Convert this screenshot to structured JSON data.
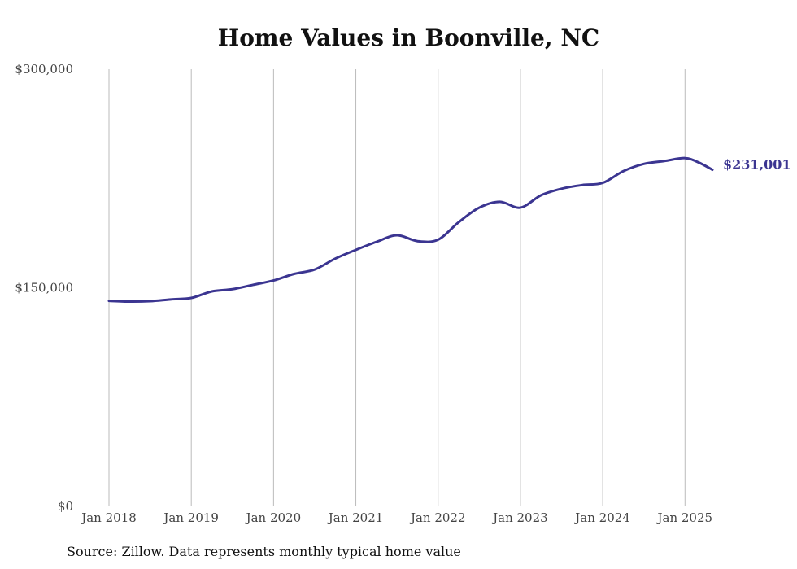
{
  "chart_data": {
    "type": "line",
    "title": "Home Values in Boonville, NC",
    "xlabel": "",
    "ylabel": "",
    "ylim": [
      0,
      300000
    ],
    "xlim": [
      "2018-01",
      "2025-05"
    ],
    "grid": {
      "vertical": true,
      "horizontal": false
    },
    "x_tick_labels": [
      "Jan 2018",
      "Jan 2019",
      "Jan 2020",
      "Jan 2021",
      "Jan 2022",
      "Jan 2023",
      "Jan 2024",
      "Jan 2025"
    ],
    "y_tick_labels": [
      "$0",
      "$150,000",
      "$300,000"
    ],
    "end_label": "$231,001",
    "colors": {
      "line": "#3b3591",
      "grid": "#bbbbbb",
      "axis_text": "#444444"
    },
    "series": [
      {
        "values": [
          {
            "x": "2018-01",
            "y": 141000
          },
          {
            "x": "2018-04",
            "y": 140500
          },
          {
            "x": "2018-07",
            "y": 140800
          },
          {
            "x": "2018-10",
            "y": 142000
          },
          {
            "x": "2019-01",
            "y": 143000
          },
          {
            "x": "2019-04",
            "y": 147500
          },
          {
            "x": "2019-07",
            "y": 149000
          },
          {
            "x": "2019-10",
            "y": 152000
          },
          {
            "x": "2020-01",
            "y": 155000
          },
          {
            "x": "2020-04",
            "y": 159500
          },
          {
            "x": "2020-07",
            "y": 162500
          },
          {
            "x": "2020-10",
            "y": 170000
          },
          {
            "x": "2021-01",
            "y": 176000
          },
          {
            "x": "2021-04",
            "y": 181500
          },
          {
            "x": "2021-07",
            "y": 186000
          },
          {
            "x": "2021-10",
            "y": 182000
          },
          {
            "x": "2022-01",
            "y": 183000
          },
          {
            "x": "2022-04",
            "y": 195000
          },
          {
            "x": "2022-07",
            "y": 205000
          },
          {
            "x": "2022-10",
            "y": 209000
          },
          {
            "x": "2023-01",
            "y": 205000
          },
          {
            "x": "2023-04",
            "y": 213500
          },
          {
            "x": "2023-07",
            "y": 218000
          },
          {
            "x": "2023-10",
            "y": 220500
          },
          {
            "x": "2024-01",
            "y": 222000
          },
          {
            "x": "2024-04",
            "y": 230000
          },
          {
            "x": "2024-07",
            "y": 235000
          },
          {
            "x": "2024-10",
            "y": 237000
          },
          {
            "x": "2025-01",
            "y": 239000
          },
          {
            "x": "2025-03",
            "y": 236000
          },
          {
            "x": "2025-05",
            "y": 231001
          }
        ]
      }
    ]
  },
  "source_note": "Source: Zillow. Data represents monthly typical home value"
}
